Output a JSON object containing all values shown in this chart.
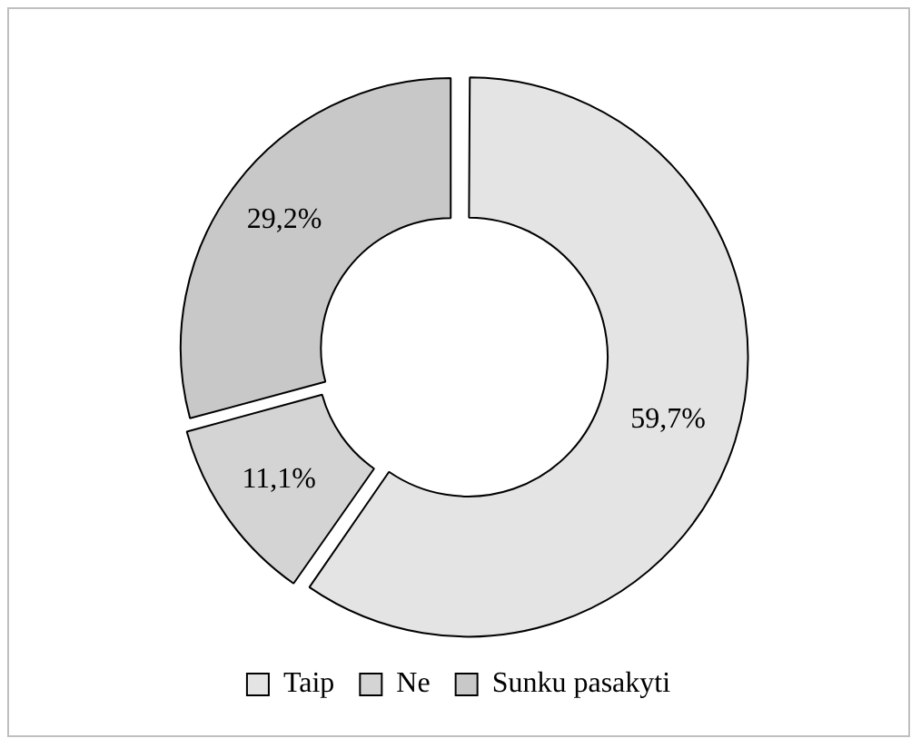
{
  "chart_data": {
    "type": "donut",
    "categories": [
      "Taip",
      "Ne",
      "Sunku pasakyti"
    ],
    "values": [
      59.7,
      11.1,
      29.2
    ],
    "colors": [
      "#e4e4e4",
      "#d4d4d4",
      "#c8c8c8"
    ],
    "value_labels": [
      "59,7%",
      "11,1%",
      "29,2%"
    ],
    "legend": "bottom"
  }
}
